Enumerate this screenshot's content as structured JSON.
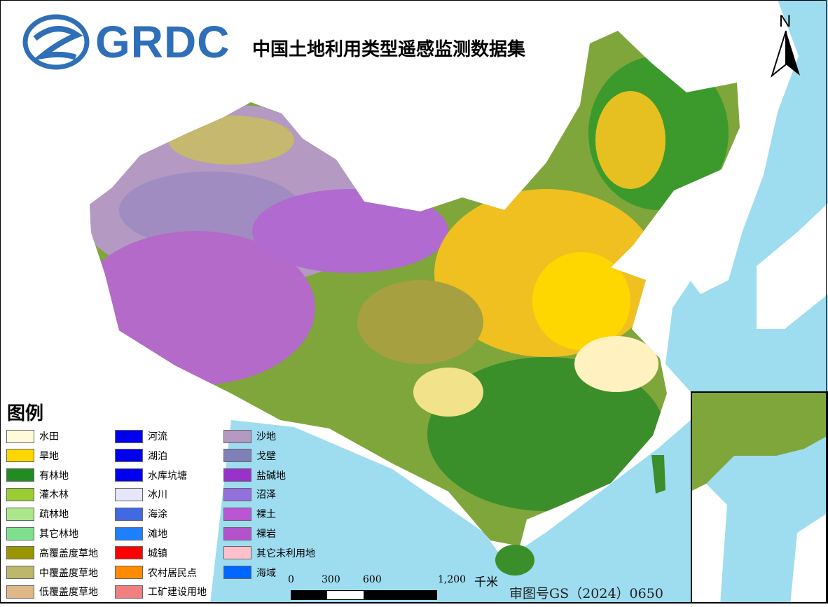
{
  "logo": {
    "text": "GRDC"
  },
  "title": "中国土地利用类型遥感监测数据集",
  "north_arrow": {
    "label": "N",
    "icon": "north-arrow-icon"
  },
  "legend": {
    "title": "图例",
    "columns": [
      [
        {
          "label": "水田",
          "color": "#fffbd8"
        },
        {
          "label": "旱地",
          "color": "#ffd700"
        },
        {
          "label": "有林地",
          "color": "#228b22"
        },
        {
          "label": "灌木林",
          "color": "#9acd32"
        },
        {
          "label": "疏林地",
          "color": "#ace68a"
        },
        {
          "label": "其它林地",
          "color": "#7ee08e"
        },
        {
          "label": "高覆盖度草地",
          "color": "#9a9600"
        },
        {
          "label": "中覆盖度草地",
          "color": "#bdb76b"
        },
        {
          "label": "低覆盖度草地",
          "color": "#deb887"
        }
      ],
      [
        {
          "label": "河流",
          "color": "#0000ee"
        },
        {
          "label": "湖泊",
          "color": "#0000ee"
        },
        {
          "label": "水库坑塘",
          "color": "#0000ee"
        },
        {
          "label": "冰川",
          "color": "#e6e6fa"
        },
        {
          "label": "海涂",
          "color": "#4169e1"
        },
        {
          "label": "滩地",
          "color": "#1e7fff"
        },
        {
          "label": "城镇",
          "color": "#ff0000"
        },
        {
          "label": "农村居民点",
          "color": "#ff8c00"
        },
        {
          "label": "工矿建设用地",
          "color": "#f08080"
        }
      ],
      [
        {
          "label": "沙地",
          "color": "#b499c2"
        },
        {
          "label": "戈壁",
          "color": "#8080b8"
        },
        {
          "label": "盐碱地",
          "color": "#9932cc"
        },
        {
          "label": "沼泽",
          "color": "#9370db"
        },
        {
          "label": "裸土",
          "color": "#ba55d3"
        },
        {
          "label": "裸岩",
          "color": "#b452cd"
        },
        {
          "label": "其它未利用地",
          "color": "#ffc0cb"
        },
        {
          "label": "海域",
          "color": "#0066ff"
        }
      ]
    ]
  },
  "scale_bar": {
    "ticks": [
      "0",
      "300",
      "600",
      "1,200"
    ],
    "unit": "千米"
  },
  "approval_number": "审图号GS（2024）0650",
  "colors": {
    "sea": "#9edcf0",
    "land_outside": "#ffffff",
    "logo_blue": "#2f6fb8"
  }
}
